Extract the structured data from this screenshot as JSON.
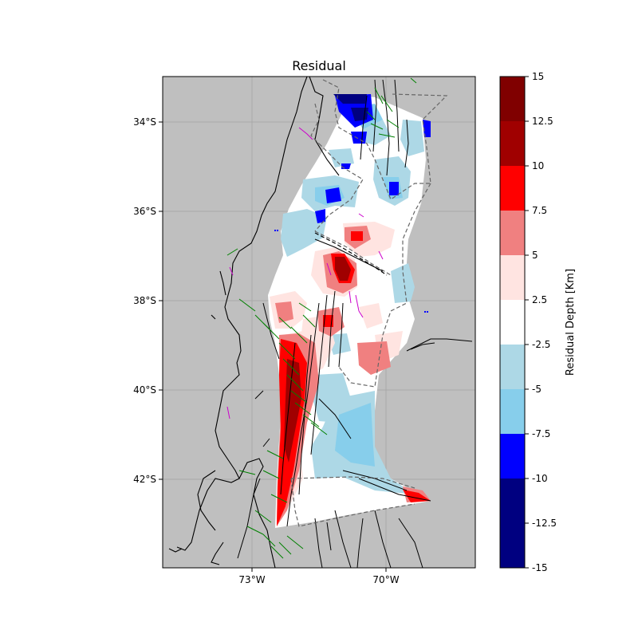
{
  "figure": {
    "title": "Residual",
    "x_ticks": [
      "73°W",
      "70°W"
    ],
    "y_ticks": [
      "34°S",
      "36°S",
      "38°S",
      "40°S",
      "42°S"
    ],
    "background_color": "#bfbfbf"
  },
  "colorbar": {
    "label": "Residual Depth [Km]",
    "tick_labels": [
      "15",
      "12.5",
      "10",
      "7.5",
      "5",
      "2.5",
      "-2.5",
      "-5",
      "-7.5",
      "-10",
      "-12.5",
      "-15"
    ],
    "colors_top_to_bottom": [
      "#800000",
      "#a00000",
      "#ff0000",
      "#f08080",
      "#ffe4e1",
      "#ffffff",
      "#add8e6",
      "#87ceeb",
      "#0000ff",
      "#000080",
      "#000080"
    ]
  },
  "legend_colors": {
    "coastline": "#000000",
    "faults": "#000000",
    "green_faults": "#008000",
    "magenta_lines": "#cc00cc",
    "boundaries": "#666666"
  }
}
